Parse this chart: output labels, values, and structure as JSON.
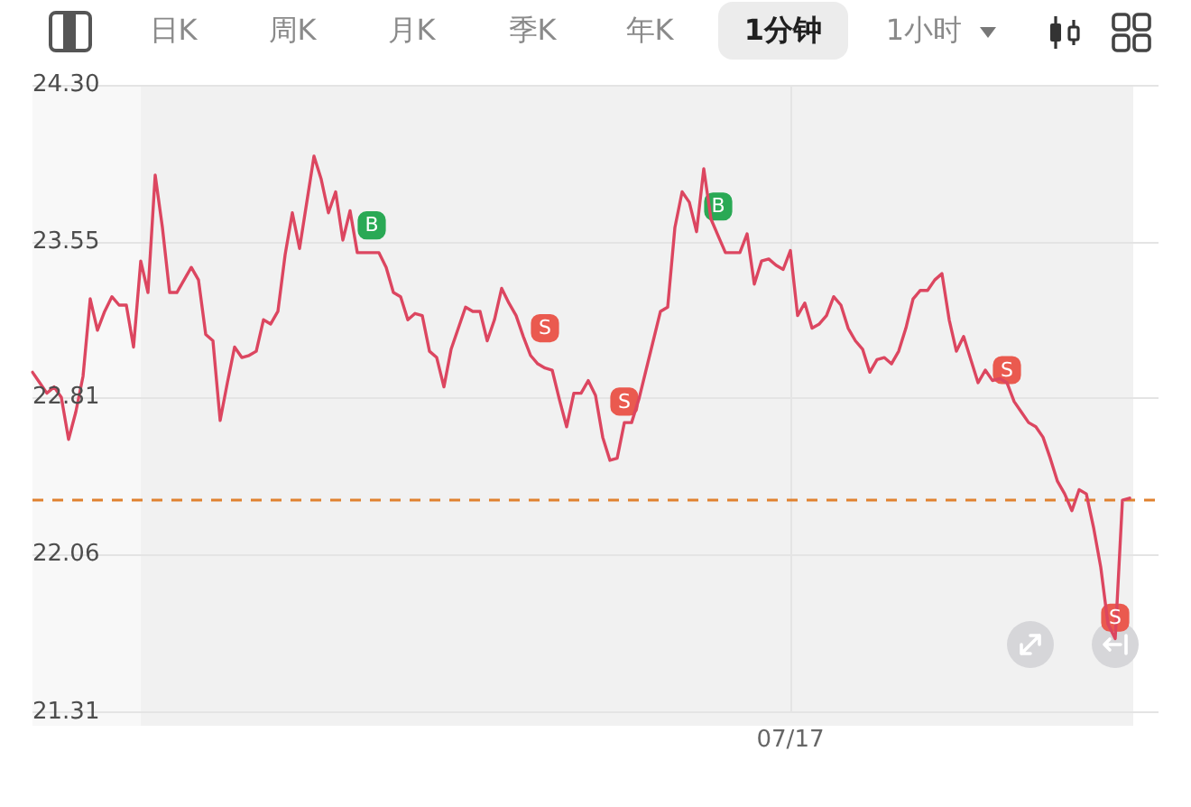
{
  "chart_data": {
    "type": "line",
    "categories": [
      null,
      null,
      null,
      null,
      null,
      null,
      null,
      null,
      null,
      null,
      null,
      null,
      null,
      null,
      null,
      null,
      null,
      null,
      null,
      null,
      null,
      null,
      null,
      null,
      null,
      null,
      null,
      null,
      null,
      null,
      null,
      null,
      null,
      null,
      null,
      null,
      null,
      null,
      null,
      null,
      null,
      null,
      null,
      null,
      null,
      null,
      null,
      null,
      null,
      null,
      null,
      null,
      null,
      null,
      null,
      null,
      null,
      null,
      null,
      null,
      null,
      null,
      null,
      null,
      null,
      null,
      null,
      null,
      null,
      null,
      null,
      null,
      null,
      null,
      null,
      null,
      null,
      null,
      null,
      null,
      null,
      null,
      null,
      null,
      null,
      null,
      null,
      null,
      null,
      null,
      null,
      null,
      null,
      null,
      null,
      null,
      null,
      null,
      null,
      null,
      null,
      null,
      null,
      null,
      null,
      "07/17",
      null,
      null,
      null,
      null,
      null,
      null,
      null,
      null,
      null,
      null,
      null,
      null,
      null,
      null,
      null,
      null,
      null,
      null,
      null,
      null,
      null,
      null,
      null,
      null,
      null,
      null,
      null,
      null,
      null,
      null,
      null,
      null,
      null,
      null,
      null,
      null,
      null,
      null,
      null,
      null,
      null,
      null,
      null,
      null,
      null,
      null,
      null,
      null,
      null,
      null,
      null
    ],
    "series": [
      {
        "type": "line",
        "color": "#dc4660",
        "values": [
          22.93,
          22.88,
          22.83,
          22.86,
          22.81,
          22.61,
          22.74,
          22.91,
          23.28,
          23.13,
          23.22,
          23.29,
          23.25,
          23.25,
          23.05,
          23.46,
          23.31,
          23.87,
          23.62,
          23.31,
          23.31,
          23.37,
          23.43,
          23.37,
          23.11,
          23.08,
          22.7,
          22.88,
          23.05,
          23.0,
          23.01,
          23.03,
          23.18,
          23.16,
          23.22,
          23.49,
          23.69,
          23.52,
          23.74,
          23.96,
          23.85,
          23.69,
          23.79,
          23.56,
          23.7,
          23.5,
          23.5,
          23.5,
          23.5,
          23.43,
          23.31,
          23.29,
          23.18,
          23.21,
          23.2,
          23.03,
          23.0,
          22.86,
          23.04,
          23.14,
          23.24,
          23.22,
          23.22,
          23.08,
          23.18,
          23.33,
          23.26,
          23.2,
          23.1,
          23.01,
          22.97,
          22.95,
          22.94,
          22.8,
          22.67,
          22.83,
          22.83,
          22.89,
          22.82,
          22.62,
          22.51,
          22.52,
          22.69,
          22.69,
          22.8,
          22.94,
          23.08,
          23.22,
          23.24,
          23.62,
          23.79,
          23.74,
          23.6,
          23.9,
          23.66,
          23.58,
          23.5,
          23.5,
          23.5,
          23.59,
          23.35,
          23.46,
          23.47,
          23.44,
          23.42,
          23.51,
          23.2,
          23.26,
          23.14,
          23.16,
          23.2,
          23.29,
          23.25,
          23.14,
          23.08,
          23.04,
          22.93,
          22.99,
          23.0,
          22.97,
          23.03,
          23.14,
          23.28,
          23.32,
          23.32,
          23.37,
          23.4,
          23.18,
          23.03,
          23.1,
          22.99,
          22.88,
          22.94,
          22.89,
          22.9,
          22.88,
          22.79,
          22.74,
          22.69,
          22.67,
          22.62,
          22.52,
          22.41,
          22.35,
          22.27,
          22.37,
          22.35,
          22.19,
          22.0,
          21.73,
          21.66,
          22.32,
          22.33,
          null,
          null,
          null,
          null
        ]
      },
      {
        "name": "B",
        "type": "scatter",
        "marker": "square",
        "color": "#2aa955",
        "values": [
          null,
          null,
          null,
          null,
          null,
          null,
          null,
          null,
          null,
          null,
          null,
          null,
          null,
          null,
          null,
          null,
          null,
          null,
          null,
          null,
          null,
          null,
          null,
          null,
          null,
          null,
          null,
          null,
          null,
          null,
          null,
          null,
          null,
          null,
          null,
          null,
          null,
          null,
          null,
          null,
          null,
          null,
          null,
          null,
          null,
          null,
          null,
          23.63,
          null,
          null,
          null,
          null,
          null,
          null,
          null,
          null,
          null,
          null,
          null,
          null,
          null,
          null,
          null,
          null,
          null,
          null,
          null,
          null,
          null,
          null,
          null,
          null,
          null,
          null,
          null,
          null,
          null,
          null,
          null,
          null,
          null,
          null,
          null,
          null,
          null,
          null,
          null,
          null,
          null,
          null,
          null,
          null,
          null,
          null,
          null,
          23.72,
          null,
          null,
          null,
          null,
          null,
          null,
          null,
          null,
          null,
          null,
          null,
          null,
          null,
          null,
          null,
          null,
          null,
          null,
          null,
          null,
          null,
          null,
          null,
          null,
          null,
          null,
          null,
          null,
          null,
          null,
          null,
          null,
          null,
          null,
          null,
          null,
          null,
          null,
          null,
          null,
          null,
          null,
          null,
          null,
          null,
          null,
          null,
          null,
          null,
          null,
          null,
          null,
          null,
          null,
          null,
          null,
          null,
          null,
          null,
          null,
          null
        ]
      },
      {
        "name": "S",
        "type": "scatter",
        "marker": "square",
        "color": "#ea5a4f",
        "values": [
          null,
          null,
          null,
          null,
          null,
          null,
          null,
          null,
          null,
          null,
          null,
          null,
          null,
          null,
          null,
          null,
          null,
          null,
          null,
          null,
          null,
          null,
          null,
          null,
          null,
          null,
          null,
          null,
          null,
          null,
          null,
          null,
          null,
          null,
          null,
          null,
          null,
          null,
          null,
          null,
          null,
          null,
          null,
          null,
          null,
          null,
          null,
          null,
          null,
          null,
          null,
          null,
          null,
          null,
          null,
          null,
          null,
          null,
          null,
          null,
          null,
          null,
          null,
          null,
          null,
          null,
          null,
          null,
          null,
          null,
          null,
          23.14,
          null,
          null,
          null,
          null,
          null,
          null,
          null,
          null,
          null,
          null,
          22.79,
          null,
          null,
          null,
          null,
          null,
          null,
          null,
          null,
          null,
          null,
          null,
          null,
          null,
          null,
          null,
          null,
          null,
          null,
          null,
          null,
          null,
          null,
          null,
          null,
          null,
          null,
          null,
          null,
          null,
          null,
          null,
          null,
          null,
          null,
          null,
          null,
          null,
          null,
          null,
          null,
          null,
          null,
          null,
          null,
          null,
          null,
          null,
          null,
          null,
          null,
          null,
          null,
          22.94,
          null,
          null,
          null,
          null,
          null,
          null,
          null,
          null,
          null,
          null,
          null,
          null,
          null,
          null,
          21.76,
          null,
          null,
          null,
          null,
          null,
          null
        ]
      }
    ],
    "ylim": [
      21.31,
      24.3
    ],
    "yticks": [
      21.31,
      22.06,
      22.81,
      23.55,
      {
        "value": 24.3,
        "label": "24.30"
      }
    ],
    "grid": true,
    "ref_lines": [
      {
        "axis": "y",
        "value": 22.32,
        "color": "#e0812f",
        "line_style": "dashed"
      }
    ],
    "annotations": [
      "日K",
      "周K",
      "月K",
      "季K",
      "年K",
      "1分钟",
      "1小时"
    ]
  }
}
